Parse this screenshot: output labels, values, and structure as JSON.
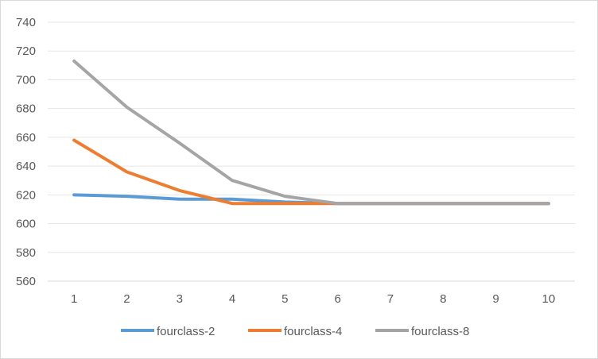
{
  "chart_data": {
    "type": "line",
    "title": "",
    "xlabel": "",
    "ylabel": "",
    "x": [
      1,
      2,
      3,
      4,
      5,
      6,
      7,
      8,
      9,
      10
    ],
    "ylim": [
      560,
      740
    ],
    "yticks": [
      560,
      580,
      600,
      620,
      640,
      660,
      680,
      700,
      720,
      740
    ],
    "grid": true,
    "legend_position": "bottom",
    "series": [
      {
        "name": "fourclass-2",
        "color": "#5b9bd5",
        "values": [
          620,
          619,
          617,
          617,
          615,
          614,
          614,
          614,
          614,
          614
        ]
      },
      {
        "name": "fourclass-4",
        "color": "#ed7d31",
        "values": [
          658,
          636,
          623,
          614,
          614,
          614,
          614,
          614,
          614,
          614
        ]
      },
      {
        "name": "fourclass-8",
        "color": "#a5a5a5",
        "values": [
          713,
          681,
          656,
          630,
          619,
          614,
          614,
          614,
          614,
          614
        ]
      }
    ]
  }
}
